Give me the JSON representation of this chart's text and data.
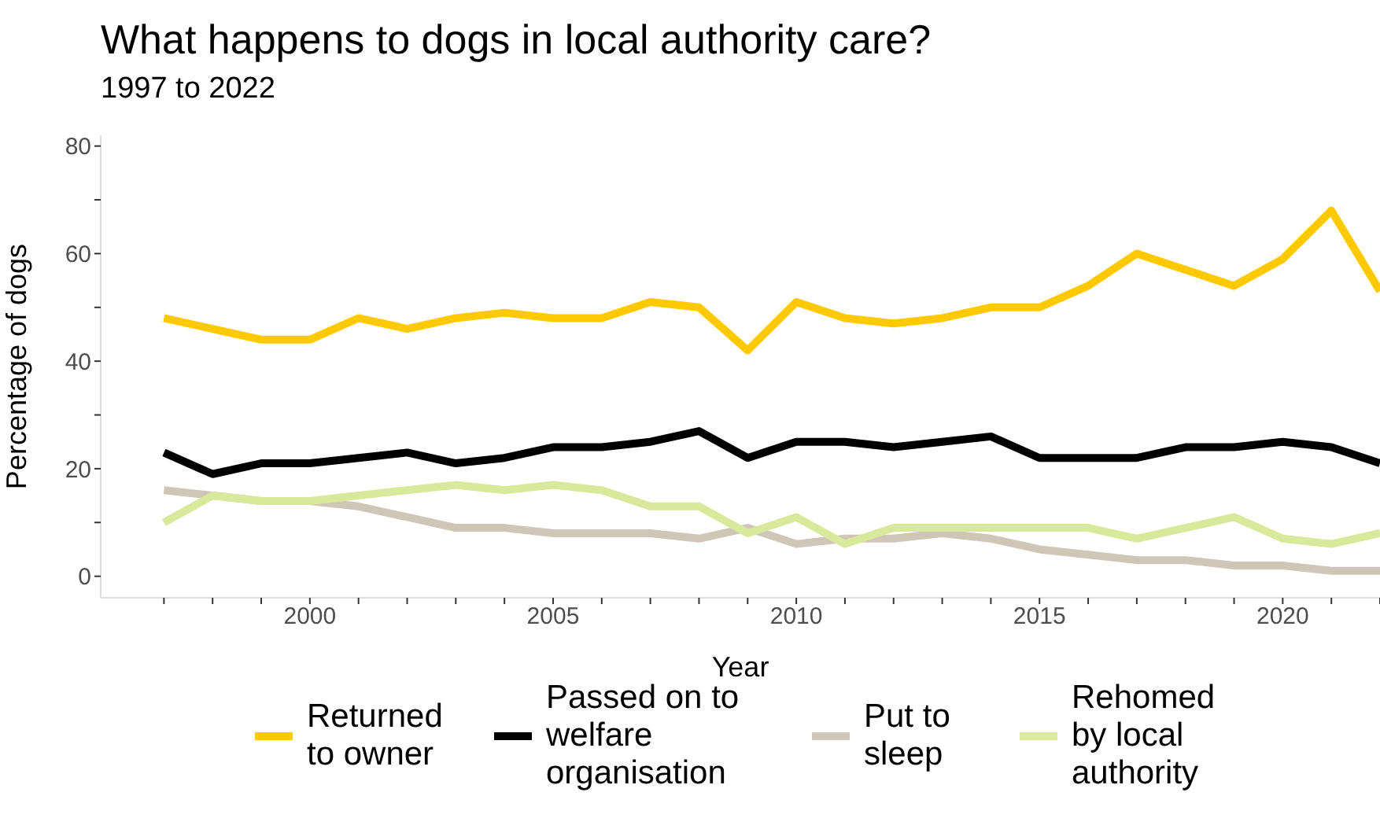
{
  "chart_data": {
    "type": "line",
    "title": "What happens to dogs in local authority care?",
    "subtitle": "1997 to 2022",
    "xlabel": "Year",
    "ylabel": "Percentage of dogs",
    "x": [
      1997,
      1998,
      1999,
      2000,
      2001,
      2002,
      2003,
      2004,
      2005,
      2006,
      2007,
      2008,
      2009,
      2010,
      2011,
      2012,
      2013,
      2014,
      2015,
      2016,
      2017,
      2018,
      2019,
      2020,
      2021,
      2022
    ],
    "xlim": [
      1995.7,
      2022
    ],
    "xticks": [
      {
        "value": 1997,
        "label": null
      },
      {
        "value": 1998,
        "label": null
      },
      {
        "value": 1999,
        "label": null
      },
      2000,
      {
        "value": 2001,
        "label": null
      },
      {
        "value": 2002,
        "label": null
      },
      {
        "value": 2003,
        "label": null
      },
      {
        "value": 2004,
        "label": null
      },
      2005,
      {
        "value": 2006,
        "label": null
      },
      {
        "value": 2007,
        "label": null
      },
      {
        "value": 2008,
        "label": null
      },
      {
        "value": 2009,
        "label": null
      },
      2010,
      {
        "value": 2011,
        "label": null
      },
      {
        "value": 2012,
        "label": null
      },
      {
        "value": 2013,
        "label": null
      },
      {
        "value": 2014,
        "label": null
      },
      2015,
      {
        "value": 2016,
        "label": null
      },
      {
        "value": 2017,
        "label": null
      },
      {
        "value": 2018,
        "label": null
      },
      {
        "value": 2019,
        "label": null
      },
      2020,
      {
        "value": 2021,
        "label": null
      },
      {
        "value": 2022,
        "label": null
      }
    ],
    "ylim": [
      -4,
      82
    ],
    "yticks": [
      0,
      {
        "value": 10,
        "label": null
      },
      20,
      {
        "value": 30,
        "label": null
      },
      40,
      {
        "value": 50,
        "label": null
      },
      60,
      {
        "value": 70,
        "label": null
      },
      80
    ],
    "series": [
      {
        "name": "Returned to owner",
        "color": "#ffc900",
        "values": [
          48,
          46,
          44,
          44,
          48,
          46,
          48,
          49,
          48,
          48,
          51,
          50,
          42,
          51,
          48,
          47,
          48,
          50,
          50,
          54,
          60,
          57,
          54,
          59,
          68,
          53
        ]
      },
      {
        "name": "Passed on to welfare organisation",
        "color": "#000000",
        "values": [
          23,
          19,
          21,
          21,
          22,
          23,
          21,
          22,
          24,
          24,
          25,
          27,
          22,
          25,
          25,
          24,
          25,
          26,
          22,
          22,
          22,
          24,
          24,
          25,
          24,
          21
        ]
      },
      {
        "name": "Put to sleep",
        "color": "#cfc6b8",
        "values": [
          16,
          15,
          14,
          14,
          13,
          11,
          9,
          9,
          8,
          8,
          8,
          7,
          9,
          6,
          7,
          7,
          8,
          7,
          5,
          4,
          3,
          3,
          2,
          2,
          1,
          1
        ]
      },
      {
        "name": "Rehomed by local authority",
        "color": "#d9e99b",
        "values": [
          10,
          15,
          14,
          14,
          15,
          16,
          17,
          16,
          17,
          16,
          13,
          13,
          8,
          11,
          6,
          9,
          9,
          9,
          9,
          9,
          7,
          9,
          11,
          7,
          6,
          8
        ]
      }
    ],
    "legend": "bottom",
    "grid": false,
    "marker": "none",
    "line_style": "solid"
  }
}
